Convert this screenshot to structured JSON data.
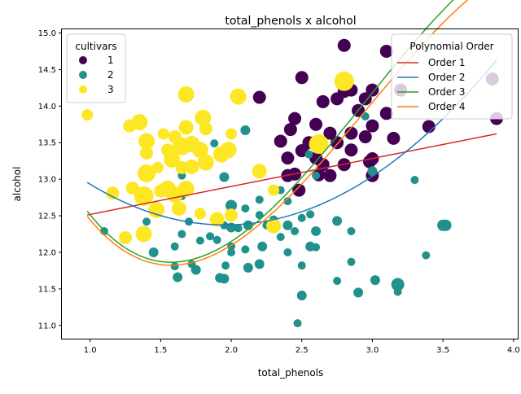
{
  "chart_data": {
    "type": "scatter",
    "title": "total_phenols x alcohol",
    "xlabel": "total_phenols",
    "ylabel": "alcohol",
    "xlim": [
      0.8,
      4.03
    ],
    "ylim": [
      10.82,
      15.05
    ],
    "xticks": [
      1.0,
      1.5,
      2.0,
      2.5,
      3.0,
      3.5,
      4.0
    ],
    "yticks": [
      11.0,
      11.5,
      12.0,
      12.5,
      13.0,
      13.5,
      14.0,
      14.5,
      15.0
    ],
    "grid": false,
    "legends": {
      "cultivars": {
        "title": "cultivars",
        "placement": "top-left",
        "entries": [
          {
            "label": "1",
            "color": "#440154"
          },
          {
            "label": "2",
            "color": "#21918c"
          },
          {
            "label": "3",
            "color": "#fde725"
          }
        ]
      },
      "poly": {
        "title": "Polynomial Order",
        "placement": "top-right",
        "entries": [
          {
            "label": "Order 1",
            "color": "#d62728"
          },
          {
            "label": "Order 2",
            "color": "#1f77b4"
          },
          {
            "label": "Order 3",
            "color": "#2ca02c"
          },
          {
            "label": "Order 4",
            "color": "#ff7f0e"
          }
        ]
      }
    },
    "series": [
      {
        "name": "1",
        "color": "#440154",
        "points": [
          [
            2.8,
            14.83,
            8
          ],
          [
            3.1,
            14.75,
            8
          ],
          [
            2.5,
            14.39,
            8
          ],
          [
            2.8,
            14.2,
            8
          ],
          [
            3.0,
            14.22,
            8
          ],
          [
            2.85,
            14.22,
            8
          ],
          [
            3.2,
            14.22,
            8
          ],
          [
            3.85,
            14.37,
            8
          ],
          [
            2.65,
            14.06,
            8
          ],
          [
            2.75,
            14.1,
            8
          ],
          [
            2.95,
            14.1,
            8
          ],
          [
            3.1,
            13.9,
            8
          ],
          [
            3.4,
            13.72,
            8
          ],
          [
            2.2,
            14.12,
            8
          ],
          [
            2.6,
            13.75,
            8
          ],
          [
            2.9,
            13.94,
            8
          ],
          [
            3.0,
            13.73,
            8
          ],
          [
            3.88,
            13.83,
            8
          ],
          [
            2.45,
            13.83,
            8
          ],
          [
            2.7,
            13.63,
            8
          ],
          [
            3.15,
            13.56,
            8
          ],
          [
            2.85,
            13.63,
            8
          ],
          [
            2.95,
            13.58,
            8
          ],
          [
            2.42,
            13.68,
            8
          ],
          [
            2.35,
            13.52,
            8
          ],
          [
            2.55,
            13.5,
            8
          ],
          [
            2.75,
            13.5,
            8
          ],
          [
            2.5,
            13.39,
            8
          ],
          [
            2.85,
            13.4,
            8
          ],
          [
            2.4,
            13.29,
            8
          ],
          [
            2.6,
            13.29,
            8
          ],
          [
            2.65,
            13.2,
            8
          ],
          [
            2.8,
            13.2,
            8
          ],
          [
            3.0,
            13.28,
            8
          ],
          [
            2.4,
            13.05,
            8
          ],
          [
            2.45,
            13.07,
            8
          ],
          [
            2.7,
            13.05,
            8
          ],
          [
            2.62,
            13.06,
            8
          ],
          [
            3.0,
            13.05,
            8
          ],
          [
            2.48,
            12.85,
            8
          ],
          [
            2.98,
            13.24,
            8
          ]
        ]
      },
      {
        "name": "2",
        "color": "#21918c",
        "points": [
          [
            2.95,
            13.86,
            5
          ],
          [
            2.1,
            13.67,
            6
          ],
          [
            2.55,
            13.34,
            5
          ],
          [
            1.88,
            13.49,
            5
          ],
          [
            1.95,
            13.03,
            6
          ],
          [
            3.3,
            12.99,
            5
          ],
          [
            3.0,
            13.11,
            6
          ],
          [
            2.6,
            13.05,
            5
          ],
          [
            1.65,
            13.05,
            5
          ],
          [
            2.35,
            12.85,
            5
          ],
          [
            2.2,
            12.72,
            5
          ],
          [
            2.4,
            12.7,
            5
          ],
          [
            2.0,
            12.64,
            7
          ],
          [
            1.45,
            12.6,
            5
          ],
          [
            1.65,
            12.77,
            5
          ],
          [
            2.1,
            12.6,
            5
          ],
          [
            2.2,
            12.51,
            5
          ],
          [
            2.3,
            12.45,
            5
          ],
          [
            2.5,
            12.47,
            5
          ],
          [
            2.56,
            12.52,
            5
          ],
          [
            2.75,
            12.43,
            6
          ],
          [
            1.4,
            12.42,
            5
          ],
          [
            1.7,
            12.42,
            5
          ],
          [
            1.95,
            12.37,
            5
          ],
          [
            2.0,
            12.34,
            6
          ],
          [
            2.12,
            12.37,
            6
          ],
          [
            2.05,
            12.33,
            5
          ],
          [
            2.25,
            12.37,
            5
          ],
          [
            2.4,
            12.37,
            6
          ],
          [
            2.45,
            12.29,
            5
          ],
          [
            2.6,
            12.29,
            6
          ],
          [
            2.85,
            12.29,
            5
          ],
          [
            3.5,
            12.37,
            7
          ],
          [
            3.52,
            12.37,
            7
          ],
          [
            1.1,
            12.29,
            5
          ],
          [
            1.65,
            12.25,
            5
          ],
          [
            1.85,
            12.22,
            5
          ],
          [
            1.9,
            12.17,
            5
          ],
          [
            2.0,
            12.08,
            5
          ],
          [
            2.22,
            12.08,
            6
          ],
          [
            2.4,
            12.0,
            5
          ],
          [
            2.56,
            12.08,
            6
          ],
          [
            2.6,
            12.07,
            5
          ],
          [
            2.1,
            12.04,
            5
          ],
          [
            1.6,
            12.08,
            5
          ],
          [
            1.78,
            12.16,
            5
          ],
          [
            2.35,
            12.21,
            5
          ],
          [
            3.38,
            11.96,
            5
          ],
          [
            1.45,
            12.0,
            6
          ],
          [
            1.72,
            11.84,
            5
          ],
          [
            1.96,
            11.82,
            5
          ],
          [
            2.2,
            11.84,
            6
          ],
          [
            2.12,
            11.79,
            6
          ],
          [
            1.6,
            11.81,
            5
          ],
          [
            1.75,
            11.76,
            6
          ],
          [
            2.85,
            11.87,
            5
          ],
          [
            2.5,
            11.82,
            5
          ],
          [
            1.62,
            11.66,
            6
          ],
          [
            1.92,
            11.65,
            6
          ],
          [
            1.95,
            11.64,
            6
          ],
          [
            2.75,
            11.61,
            5
          ],
          [
            3.02,
            11.62,
            6
          ],
          [
            3.18,
            11.56,
            8
          ],
          [
            3.18,
            11.46,
            5
          ],
          [
            2.9,
            11.45,
            6
          ],
          [
            2.5,
            11.41,
            6
          ],
          [
            2.47,
            11.03,
            5
          ],
          [
            2.0,
            12.0,
            5
          ]
        ]
      },
      {
        "name": "3",
        "color": "#fde725",
        "points": [
          [
            2.8,
            14.34,
            12
          ],
          [
            1.68,
            14.16,
            10
          ],
          [
            2.05,
            14.13,
            10
          ],
          [
            1.8,
            13.84,
            10
          ],
          [
            1.35,
            13.78,
            10
          ],
          [
            1.28,
            13.73,
            8
          ],
          [
            1.68,
            13.71,
            9
          ],
          [
            1.82,
            13.69,
            8
          ],
          [
            0.98,
            13.88,
            7
          ],
          [
            1.4,
            13.52,
            10
          ],
          [
            1.52,
            13.62,
            7
          ],
          [
            1.6,
            13.58,
            8
          ],
          [
            1.72,
            13.48,
            10
          ],
          [
            1.65,
            13.45,
            11
          ],
          [
            1.55,
            13.4,
            8
          ],
          [
            1.4,
            13.36,
            8
          ],
          [
            1.78,
            13.4,
            10
          ],
          [
            1.98,
            13.4,
            10
          ],
          [
            2.0,
            13.62,
            7
          ],
          [
            2.62,
            13.48,
            12
          ],
          [
            1.58,
            13.27,
            10
          ],
          [
            1.72,
            13.17,
            9
          ],
          [
            1.82,
            13.23,
            10
          ],
          [
            1.65,
            13.16,
            8
          ],
          [
            1.93,
            13.34,
            10
          ],
          [
            1.4,
            13.08,
            11
          ],
          [
            1.48,
            13.16,
            7
          ],
          [
            2.2,
            13.11,
            9
          ],
          [
            1.3,
            12.88,
            8
          ],
          [
            1.68,
            12.87,
            10
          ],
          [
            1.55,
            12.87,
            10
          ],
          [
            1.5,
            12.84,
            8
          ],
          [
            1.38,
            12.77,
            12
          ],
          [
            1.6,
            12.79,
            10
          ],
          [
            1.63,
            12.6,
            9
          ],
          [
            1.47,
            12.58,
            10
          ],
          [
            1.16,
            12.81,
            8
          ],
          [
            1.78,
            12.53,
            7
          ],
          [
            1.9,
            12.45,
            9
          ],
          [
            2.3,
            12.85,
            7
          ],
          [
            1.38,
            12.25,
            10
          ],
          [
            1.25,
            12.2,
            8
          ],
          [
            2.3,
            12.36,
            9
          ],
          [
            2.0,
            12.51,
            8
          ]
        ]
      }
    ],
    "fits": [
      {
        "name": "Order 1",
        "color": "#d62728",
        "x_range": [
          0.98,
          3.88
        ],
        "coefficients": [
          0.3826,
          12.136
        ]
      },
      {
        "name": "Order 2",
        "color": "#1f77b4",
        "x_range": [
          0.98,
          3.88
        ],
        "coefficients": [
          0.6088,
          -2.3812,
          14.704
        ]
      },
      {
        "name": "Order 3",
        "color": "#2ca02c",
        "x_range": [
          0.98,
          3.88
        ],
        "coefficients": [
          -0.4208,
          3.7235,
          -8.5895,
          17.801
        ]
      },
      {
        "name": "Order 4",
        "color": "#ff7f0e",
        "x_range": [
          0.98,
          3.88
        ],
        "coefficients": [
          0.0,
          -0.4021,
          3.5629,
          -8.2216,
          17.506
        ]
      }
    ]
  }
}
